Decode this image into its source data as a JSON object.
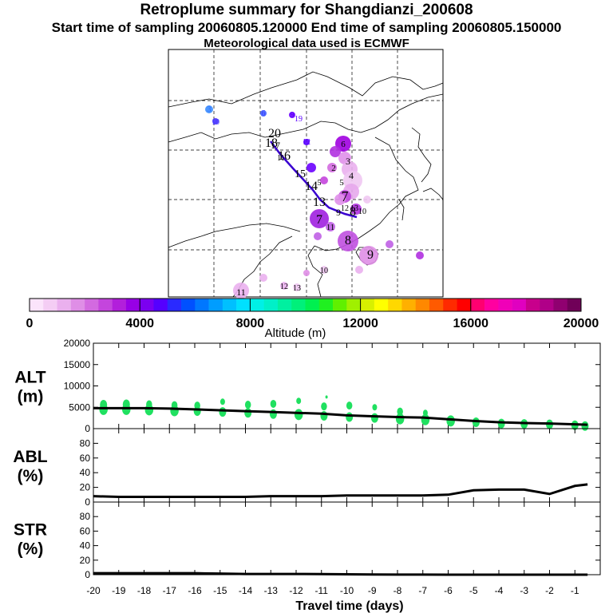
{
  "header": {
    "title": "Retroplume summary for Shangdianzi_200608",
    "subtitle": "Start time of sampling 20060805.120000     End time of sampling 20060805.150000",
    "met": "Meteorological data used is ECMWF"
  },
  "colorbar": {
    "ticks": [
      "0",
      "4000",
      "8000",
      "12000",
      "16000",
      "20000"
    ],
    "label": "Altitude (m)",
    "colors": [
      "#fbe4fb",
      "#f4cdf4",
      "#eab0ee",
      "#df8ee6",
      "#d36ae0",
      "#c445dd",
      "#b21fdb",
      "#9800e6",
      "#7b00f0",
      "#5500ff",
      "#2a2aff",
      "#0050ff",
      "#0077ff",
      "#009dff",
      "#00c0ff",
      "#00e0ff",
      "#00f0e6",
      "#00f0c8",
      "#00f0a0",
      "#00f07a",
      "#00f050",
      "#20f020",
      "#60f000",
      "#a0f000",
      "#d8f000",
      "#ffff00",
      "#ffd800",
      "#ffb000",
      "#ff8800",
      "#ff5a00",
      "#ff2a00",
      "#ff0000",
      "#ff0070",
      "#ff00a0",
      "#f000b8",
      "#e000c0",
      "#c8008c",
      "#b00088",
      "#900070",
      "#700058"
    ]
  },
  "map": {
    "labels": [
      {
        "t": "3",
        "c": "#3070ff"
      },
      {
        "t": "6",
        "c": "#4040ff"
      },
      {
        "t": "9",
        "c": "#5a00ff"
      },
      {
        "t": "19",
        "c": "#5a00ff"
      },
      {
        "t": "10",
        "c": "#4040ff"
      },
      {
        "t": "12",
        "c": "#5a00ff"
      },
      {
        "t": "20",
        "c": "#000"
      },
      {
        "t": "18",
        "c": "#000"
      },
      {
        "t": "16",
        "c": "#000"
      },
      {
        "t": "17",
        "c": "#000"
      },
      {
        "t": "15",
        "c": "#000"
      },
      {
        "t": "14",
        "c": "#000"
      },
      {
        "t": "13",
        "c": "#000"
      },
      {
        "t": "11",
        "c": "#000"
      },
      {
        "t": "6",
        "c": "#000"
      },
      {
        "t": "2",
        "c": "#000"
      },
      {
        "t": "3",
        "c": "#000"
      },
      {
        "t": "4",
        "c": "#000"
      },
      {
        "t": "5",
        "c": "#000"
      },
      {
        "t": "7",
        "c": "#000"
      },
      {
        "t": "8",
        "c": "#000"
      },
      {
        "t": "9",
        "c": "#000"
      },
      {
        "t": "10",
        "c": "#000"
      },
      {
        "t": "11",
        "c": "#000"
      },
      {
        "t": "12",
        "c": "#000"
      },
      {
        "t": "13",
        "c": "#000"
      },
      {
        "t": "7",
        "c": "#000"
      },
      {
        "t": "8",
        "c": "#000"
      },
      {
        "t": "5",
        "c": "#000"
      },
      {
        "t": "9",
        "c": "#000"
      },
      {
        "t": "10",
        "c": "#000"
      },
      {
        "t": "11",
        "c": "#000"
      },
      {
        "t": "12",
        "c": "#000"
      },
      {
        "t": "13",
        "c": "#000"
      }
    ]
  },
  "chart_data": {
    "type": "line",
    "x": [
      -20,
      -19,
      -18,
      -17,
      -16,
      -15,
      -14,
      -13,
      -12,
      -11,
      -10,
      -9,
      -8,
      -7,
      -6,
      -5,
      -4,
      -3,
      -2,
      -1,
      -0.5
    ],
    "xlabel": "Travel time (days)",
    "xticks": [
      "-20",
      "-19",
      "-18",
      "-17",
      "-16",
      "-15",
      "-14",
      "-13",
      "-12",
      "-11",
      "-10",
      "-9",
      "-8",
      "-7",
      "-6",
      "-5",
      "-4",
      "-3",
      "-2",
      "-1"
    ],
    "panels": [
      {
        "name": "ALT",
        "ylabel1": "ALT",
        "ylabel2": "(m)",
        "ylim": [
          0,
          20000
        ],
        "yticks": [
          "0",
          "5000",
          "10000",
          "15000",
          "20000"
        ],
        "series": [
          {
            "name": "mean altitude",
            "values": [
              4800,
              4800,
              4800,
              4700,
              4500,
              4300,
              4100,
              3900,
              3700,
              3500,
              3100,
              2900,
              2700,
              2600,
              2200,
              1800,
              1500,
              1300,
              1200,
              1000,
              900
            ]
          },
          {
            "name": "cluster altitudes",
            "scatter": [
              [
                -19.6,
                4500,
                7
              ],
              [
                -19.6,
                5600,
                6
              ],
              [
                -18.7,
                4500,
                7
              ],
              [
                -18.7,
                5700,
                6
              ],
              [
                -17.8,
                4400,
                7
              ],
              [
                -17.8,
                5700,
                5
              ],
              [
                -16.8,
                4200,
                7
              ],
              [
                -16.8,
                5500,
                5
              ],
              [
                -15.9,
                4100,
                6
              ],
              [
                -15.9,
                5400,
                5
              ],
              [
                -14.9,
                3900,
                6
              ],
              [
                -14.9,
                6300,
                4
              ],
              [
                -13.9,
                3700,
                6
              ],
              [
                -13.9,
                5600,
                5
              ],
              [
                -12.9,
                3400,
                6
              ],
              [
                -12.9,
                5800,
                5
              ],
              [
                -11.9,
                3300,
                7
              ],
              [
                -11.9,
                6500,
                4
              ],
              [
                -10.9,
                3000,
                6
              ],
              [
                -10.9,
                5200,
                5
              ],
              [
                -10.8,
                7400,
                2
              ],
              [
                -9.9,
                2700,
                6
              ],
              [
                -9.9,
                5400,
                5
              ],
              [
                -8.9,
                2500,
                6
              ],
              [
                -8.9,
                5000,
                4
              ],
              [
                -7.9,
                2300,
                7
              ],
              [
                -7.9,
                4000,
                5
              ],
              [
                -6.9,
                2100,
                7
              ],
              [
                -6.9,
                3700,
                4
              ],
              [
                -5.9,
                1800,
                7
              ],
              [
                -4.9,
                1500,
                6
              ],
              [
                -3.9,
                1200,
                6
              ],
              [
                -3.0,
                1100,
                6
              ],
              [
                -2.0,
                1000,
                6
              ],
              [
                -1.0,
                800,
                6
              ],
              [
                -0.6,
                600,
                6
              ]
            ]
          }
        ]
      },
      {
        "name": "ABL",
        "ylabel1": "ABL",
        "ylabel2": "(%)",
        "ylim": [
          0,
          100
        ],
        "yticks": [
          "0",
          "20",
          "40",
          "60",
          "80"
        ],
        "series": [
          {
            "name": "ABL fraction",
            "values": [
              8,
              7,
              7,
              7,
              7,
              7,
              7,
              8,
              8,
              8,
              9,
              9,
              9,
              9,
              10,
              16,
              17,
              17,
              11,
              22,
              24
            ]
          }
        ]
      },
      {
        "name": "STR",
        "ylabel1": "STR",
        "ylabel2": "(%)",
        "ylim": [
          0,
          100
        ],
        "yticks": [
          "0",
          "20",
          "40",
          "60",
          "80"
        ],
        "series": [
          {
            "name": "STR fraction",
            "values": [
              2,
              2,
              2,
              2,
              2,
              1.5,
              1,
              1,
              1,
              0.8,
              0.5,
              0.3,
              0.2,
              0.1,
              0,
              0,
              0,
              0,
              0,
              0,
              0
            ]
          }
        ]
      }
    ]
  }
}
